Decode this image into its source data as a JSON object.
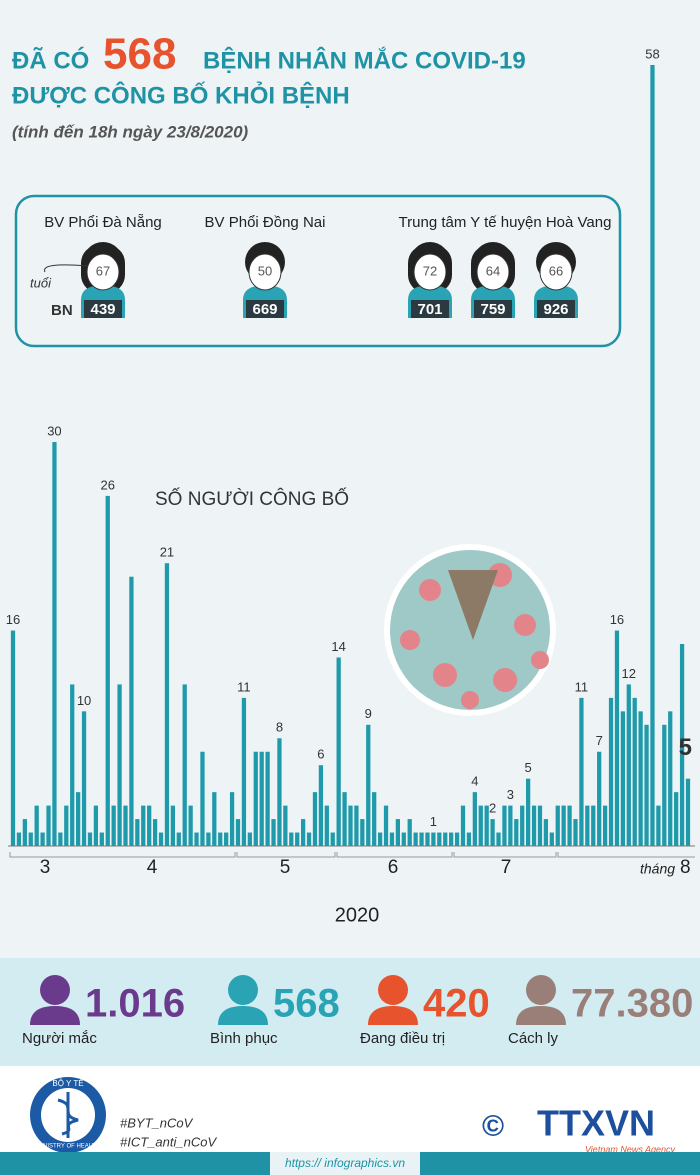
{
  "header": {
    "title_prefix": "ĐÃ CÓ",
    "title_number": "568",
    "title_suffix": "BỆNH NHÂN MẮC COVID-19",
    "title_line2": "ĐƯỢC CÔNG BỐ KHỎI BỆNH",
    "subtitle": "(tính đến 18h ngày 23/8/2020)"
  },
  "patients": {
    "age_label": "tuổi",
    "bn_label": "BN",
    "groups": [
      {
        "name": "BV Phổi Đà Nẵng",
        "patients": [
          {
            "age": "67",
            "bn": "439"
          }
        ]
      },
      {
        "name": "BV Phổi Đồng Nai",
        "patients": [
          {
            "age": "50",
            "bn": "669"
          }
        ]
      },
      {
        "name": "Trung tâm Y tế huyện Hoà Vang",
        "patients": [
          {
            "age": "72",
            "bn": "701"
          },
          {
            "age": "64",
            "bn": "759"
          },
          {
            "age": "66",
            "bn": "926"
          }
        ]
      }
    ]
  },
  "chart_data": {
    "type": "bar",
    "title": "SỐ NGƯỜI CÔNG BỐ",
    "color": "#1f9aab",
    "ylim": [
      0,
      58
    ],
    "values": [
      16,
      1,
      2,
      1,
      3,
      1,
      3,
      30,
      1,
      3,
      12,
      4,
      10,
      1,
      3,
      1,
      26,
      3,
      12,
      3,
      20,
      2,
      3,
      3,
      2,
      1,
      21,
      3,
      1,
      12,
      3,
      1,
      7,
      1,
      4,
      1,
      1,
      4,
      2,
      11,
      1,
      7,
      7,
      7,
      2,
      8,
      3,
      1,
      1,
      2,
      1,
      4,
      6,
      3,
      1,
      14,
      4,
      3,
      3,
      2,
      9,
      4,
      1,
      3,
      1,
      2,
      1,
      2,
      1,
      1,
      1,
      1,
      1,
      1,
      1,
      1,
      3,
      1,
      4,
      3,
      3,
      2,
      1,
      3,
      3,
      2,
      3,
      5,
      3,
      3,
      2,
      1,
      3,
      3,
      3,
      2,
      11,
      3,
      3,
      7,
      3,
      11,
      16,
      10,
      12,
      11,
      10,
      9,
      58,
      3,
      9,
      10,
      4,
      15,
      5
    ],
    "value_labels": [
      "16",
      null,
      null,
      null,
      null,
      null,
      null,
      "30",
      null,
      null,
      null,
      null,
      "10",
      null,
      null,
      null,
      "26",
      null,
      null,
      null,
      null,
      null,
      null,
      null,
      null,
      null,
      "21",
      null,
      null,
      null,
      null,
      null,
      null,
      null,
      null,
      null,
      null,
      null,
      null,
      "11",
      null,
      null,
      null,
      null,
      null,
      "8",
      null,
      null,
      null,
      null,
      null,
      null,
      "6",
      null,
      null,
      "14",
      null,
      null,
      null,
      null,
      "9",
      null,
      null,
      null,
      null,
      null,
      null,
      null,
      null,
      null,
      null,
      "1",
      null,
      null,
      null,
      null,
      null,
      null,
      "4",
      null,
      null,
      "2",
      null,
      null,
      "3",
      null,
      null,
      "5",
      null,
      null,
      null,
      null,
      null,
      null,
      null,
      null,
      "11",
      null,
      null,
      "7",
      null,
      null,
      "16",
      null,
      "12",
      null,
      null,
      null,
      "58",
      null,
      null,
      null,
      null,
      null,
      "5"
    ],
    "month_labels": [
      "3",
      "4",
      "5",
      "6",
      "7"
    ],
    "last_month_prefix": "tháng",
    "last_month": "8",
    "year": "2020"
  },
  "stats": [
    {
      "value": "1.016",
      "label": "Người mắc",
      "color": "#6a3b8c"
    },
    {
      "value": "568",
      "label": "Bình phục",
      "color": "#2aa3b5"
    },
    {
      "value": "420",
      "label": "Đang điều trị",
      "color": "#e6532d"
    },
    {
      "value": "77.380",
      "label": "Cách ly",
      "color": "#9a7f79"
    }
  ],
  "footer": {
    "ministry_vn": "BỘ Y TẾ",
    "ministry_en": "MINISTRY OF HEALTH",
    "hashtag1": "#BYT_nCoV",
    "hashtag2": "#ICT_anti_nCoV",
    "copyright": "©",
    "agency": "TTXVN",
    "agency_en": "Vietnam News Agency",
    "url": "https:// infographics.vn"
  }
}
